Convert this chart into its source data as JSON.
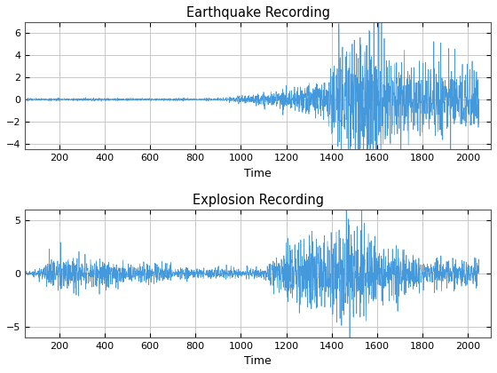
{
  "title1": "Earthquake Recording",
  "title2": "Explosion Recording",
  "xlabel": "Time",
  "xlim": [
    50,
    2100
  ],
  "ylim1": [
    -4.5,
    7
  ],
  "ylim2": [
    -6,
    6
  ],
  "yticks1": [
    -4,
    -2,
    0,
    2,
    4,
    6
  ],
  "yticks2": [
    -5,
    0,
    5
  ],
  "xticks": [
    200,
    400,
    600,
    800,
    1000,
    1200,
    1400,
    1600,
    1800,
    2000
  ],
  "line_color": "#4499DD",
  "line_width": 0.5,
  "grid_color": "#c0c0c0",
  "background_color": "#ffffff",
  "n_samples": 2048,
  "seed1": 7,
  "seed2": 13
}
